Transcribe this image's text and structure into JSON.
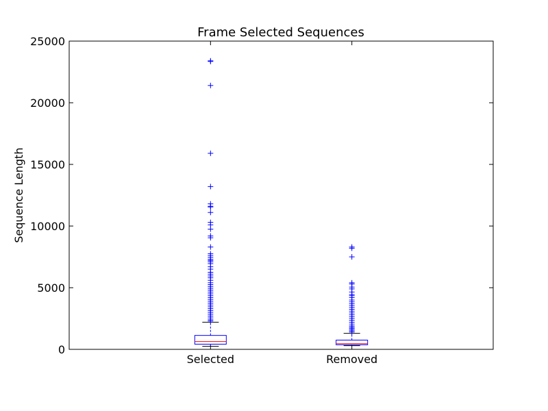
{
  "chart_data": {
    "type": "box",
    "title": "Frame Selected Sequences",
    "xlabel": "",
    "ylabel": "Sequence Length",
    "ylim": [
      0,
      25000
    ],
    "yticks": [
      0,
      5000,
      10000,
      15000,
      20000,
      25000
    ],
    "categories": [
      "Selected",
      "Removed"
    ],
    "boxes": [
      {
        "name": "Selected",
        "whisker_low": 250,
        "q1": 420,
        "median": 630,
        "q3": 1130,
        "whisker_high": 2200,
        "outliers": [
          23400,
          23350,
          21400,
          15900,
          13200,
          11800,
          11600,
          11550,
          11100,
          10300,
          10100,
          9750,
          9200,
          9050,
          8300,
          7750,
          7600,
          7450,
          7300,
          7200,
          7100,
          6950,
          6700,
          6500,
          6250,
          6100,
          5950,
          5800,
          5600,
          5400,
          5250,
          5100,
          4950,
          4800,
          4650,
          4500,
          4350,
          4200,
          4050,
          3900,
          3750,
          3600,
          3450,
          3300,
          3150,
          3000,
          2850,
          2700,
          2550,
          2400,
          2300
        ]
      },
      {
        "name": "Removed",
        "whisker_low": 300,
        "q1": 370,
        "median": 460,
        "q3": 750,
        "whisker_high": 1300,
        "outliers": [
          8300,
          8200,
          7500,
          5400,
          5300,
          5050,
          4900,
          4650,
          4450,
          4350,
          4200,
          4000,
          3850,
          3700,
          3550,
          3400,
          3250,
          3100,
          2950,
          2800,
          2650,
          2500,
          2350,
          2200,
          2050,
          1900,
          1800,
          1700,
          1600,
          1500,
          1400
        ]
      }
    ],
    "colors": {
      "box": "#0000ff",
      "median": "#ff0000",
      "whisker": "#0000ff",
      "cap": "#000000",
      "flier": "#0000ff",
      "axes": "#000000"
    }
  }
}
